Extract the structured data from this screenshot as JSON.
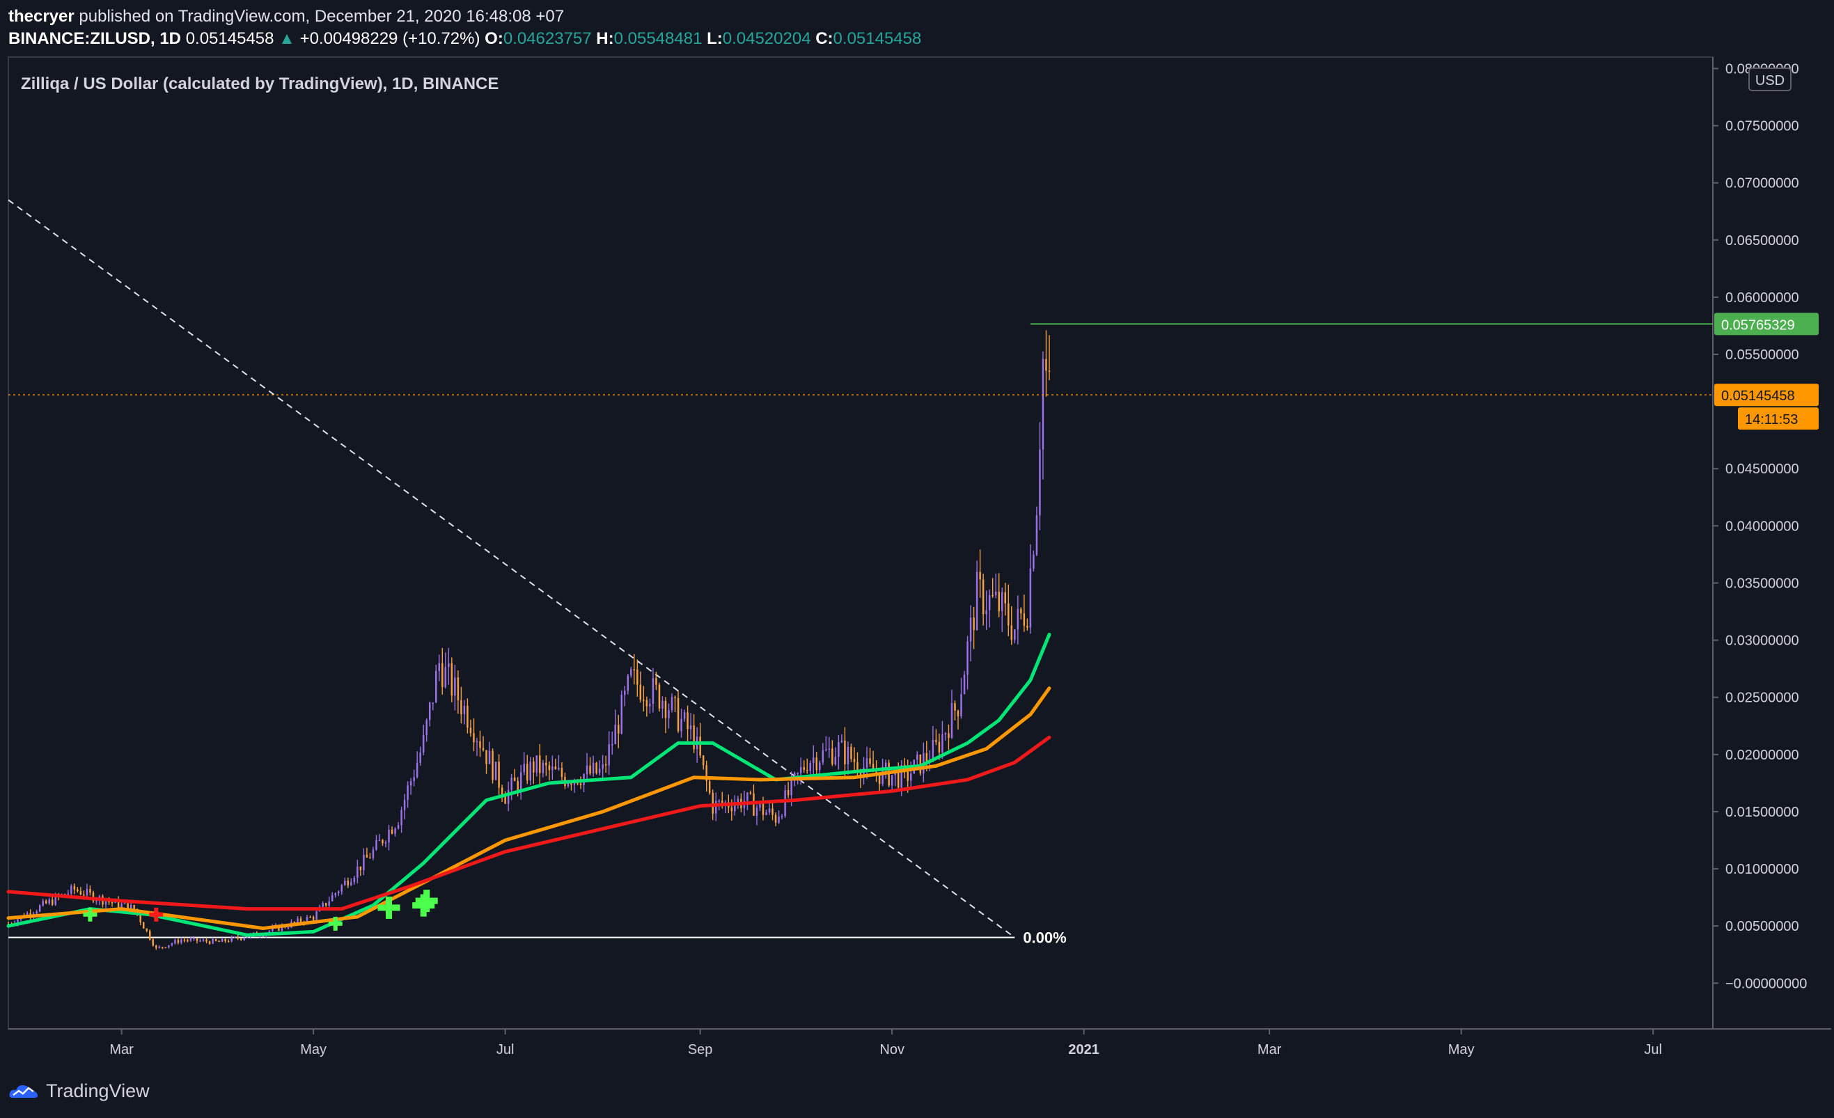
{
  "publisher": {
    "user": "thecryer",
    "line": "published on TradingView.com, December 21, 2020 16:48:08 +07"
  },
  "ticker": {
    "symbol": "BINANCE:ZILUSD, 1D",
    "price": "0.05145458",
    "change": "+0.00498229 (+10.72%)",
    "o_label": "O:",
    "o": "0.04623757",
    "h_label": "H:",
    "h": "0.05548481",
    "l_label": "L:",
    "l": "0.04520204",
    "c_label": "C:",
    "c": "0.05145458"
  },
  "footer": {
    "brand": "TradingView"
  },
  "colors": {
    "background": "#131722",
    "ema_fast": "#00e676",
    "ema_mid": "#ff9800",
    "ema_slow": "#f01919",
    "candle_up": "#9b72e8",
    "candle_down": "#f7a042",
    "level_line": "#4caf50",
    "last_price": "#ff9800"
  },
  "chart_data": {
    "type": "line",
    "title": "Zilliqa / US Dollar (calculated by TradingView), 1D, BINANCE",
    "currency": "USD",
    "xlabel": "",
    "ylabel": "",
    "ylim": [
      -0.004,
      0.081
    ],
    "xlim": [
      "2020-01-25",
      "2021-07-20"
    ],
    "y_ticks": [
      0.08,
      0.075,
      0.07,
      0.065,
      0.06,
      0.055,
      0.045,
      0.04,
      0.035,
      0.03,
      0.025,
      0.02,
      0.015,
      0.01,
      0.005,
      0.0
    ],
    "y_tick_labels": [
      "0.08000000",
      "0.07500000",
      "0.07000000",
      "0.06500000",
      "0.06000000",
      "0.05500000",
      "0.04500000",
      "0.04000000",
      "0.03500000",
      "0.03000000",
      "0.02500000",
      "0.02000000",
      "0.01500000",
      "0.01000000",
      "0.00500000",
      "−0.00000000"
    ],
    "x_ticks": [
      "2020-03-01",
      "2020-05-01",
      "2020-07-01",
      "2020-09-01",
      "2020-11-01",
      "2021-01-01",
      "2021-03-01",
      "2021-05-01",
      "2021-07-01"
    ],
    "x_tick_labels": [
      "Mar",
      "May",
      "Jul",
      "Sep",
      "Nov",
      "2021",
      "Mar",
      "May",
      "Jul"
    ],
    "price_series": {
      "name": "",
      "x": [
        "2020-01-25",
        "2020-02-05",
        "2020-02-15",
        "2020-02-25",
        "2020-03-05",
        "2020-03-12",
        "2020-03-20",
        "2020-04-01",
        "2020-04-15",
        "2020-05-01",
        "2020-05-10",
        "2020-05-20",
        "2020-05-28",
        "2020-06-05",
        "2020-06-10",
        "2020-06-20",
        "2020-07-01",
        "2020-07-10",
        "2020-07-20",
        "2020-08-01",
        "2020-08-10",
        "2020-08-20",
        "2020-08-30",
        "2020-09-05",
        "2020-09-15",
        "2020-09-25",
        "2020-10-05",
        "2020-10-15",
        "2020-10-25",
        "2020-11-05",
        "2020-11-15",
        "2020-11-22",
        "2020-11-28",
        "2020-12-05",
        "2020-12-10",
        "2020-12-14",
        "2020-12-17",
        "2020-12-19",
        "2020-12-21"
      ],
      "values": [
        0.0052,
        0.0068,
        0.0082,
        0.0072,
        0.0065,
        0.003,
        0.0038,
        0.0036,
        0.0044,
        0.0058,
        0.0085,
        0.0115,
        0.0145,
        0.021,
        0.028,
        0.023,
        0.0165,
        0.019,
        0.018,
        0.0185,
        0.0265,
        0.025,
        0.0215,
        0.0155,
        0.016,
        0.0145,
        0.0195,
        0.0205,
        0.0185,
        0.018,
        0.0205,
        0.0245,
        0.034,
        0.033,
        0.031,
        0.033,
        0.0425,
        0.0545,
        0.0515
      ]
    },
    "series": [
      {
        "name": "",
        "color": "#00e676",
        "x": [
          "2020-01-25",
          "2020-02-20",
          "2020-03-10",
          "2020-04-10",
          "2020-05-01",
          "2020-05-20",
          "2020-06-05",
          "2020-06-25",
          "2020-07-15",
          "2020-08-10",
          "2020-08-25",
          "2020-09-05",
          "2020-09-25",
          "2020-10-20",
          "2020-11-10",
          "2020-11-25",
          "2020-12-05",
          "2020-12-15",
          "2020-12-21"
        ],
        "values": [
          0.005,
          0.0065,
          0.006,
          0.0042,
          0.0045,
          0.0068,
          0.0105,
          0.016,
          0.0175,
          0.018,
          0.021,
          0.021,
          0.0178,
          0.0185,
          0.019,
          0.021,
          0.023,
          0.0265,
          0.0305
        ]
      },
      {
        "name": "",
        "color": "#ff9800",
        "x": [
          "2020-01-25",
          "2020-03-01",
          "2020-04-15",
          "2020-05-15",
          "2020-06-10",
          "2020-07-01",
          "2020-08-01",
          "2020-08-30",
          "2020-09-20",
          "2020-10-20",
          "2020-11-15",
          "2020-12-01",
          "2020-12-15",
          "2020-12-21"
        ],
        "values": [
          0.0057,
          0.0065,
          0.0048,
          0.0058,
          0.0095,
          0.0125,
          0.015,
          0.018,
          0.0178,
          0.018,
          0.019,
          0.0205,
          0.0235,
          0.0258
        ]
      },
      {
        "name": "",
        "color": "#f01919",
        "x": [
          "2020-01-25",
          "2020-03-01",
          "2020-04-10",
          "2020-05-10",
          "2020-06-01",
          "2020-07-01",
          "2020-08-01",
          "2020-09-01",
          "2020-10-01",
          "2020-11-01",
          "2020-11-25",
          "2020-12-10",
          "2020-12-21"
        ],
        "values": [
          0.008,
          0.0072,
          0.0065,
          0.0065,
          0.0085,
          0.0115,
          0.0135,
          0.0155,
          0.016,
          0.0168,
          0.0178,
          0.0193,
          0.0215
        ]
      }
    ],
    "annotations": {
      "trendline": {
        "from": [
          "2020-01-25",
          0.0685
        ],
        "to": [
          "2020-12-10",
          0.004
        ]
      },
      "baseline": {
        "from": "2020-01-25",
        "to": "2020-12-10",
        "value": 0.004,
        "label": "0.00%"
      },
      "resistance": {
        "from": "2020-12-15",
        "value": 0.05765329,
        "label": "0.05765329"
      },
      "last_price": {
        "value": 0.05145458,
        "label": "0.05145458",
        "countdown": "14:11:53"
      },
      "buy_markers": [
        [
          "2020-02-20",
          0.006
        ],
        [
          "2020-05-08",
          0.0052
        ],
        [
          "2020-05-25",
          0.0066
        ],
        [
          "2020-06-05",
          0.0068
        ],
        [
          "2020-06-06",
          0.0072
        ]
      ],
      "sell_markers": [
        [
          "2020-03-12",
          0.006
        ]
      ]
    }
  }
}
